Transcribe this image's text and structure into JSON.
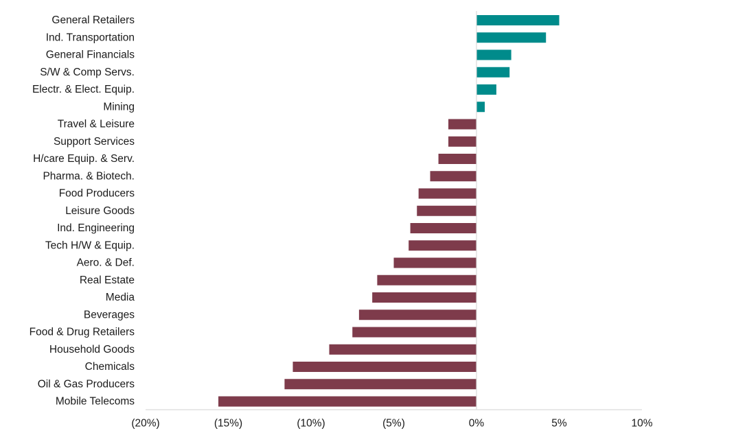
{
  "chart_data": {
    "type": "bar",
    "orientation": "horizontal",
    "title": "",
    "xlabel": "",
    "ylabel": "",
    "xlim": [
      -20,
      10
    ],
    "x_ticks": [
      -20,
      -15,
      -10,
      -5,
      0,
      5,
      10
    ],
    "x_tick_labels": [
      "(20%)",
      "(15%)",
      "(10%)",
      "(5%)",
      "0%",
      "5%",
      "10%"
    ],
    "grid": false,
    "legend": "none",
    "colors": {
      "positive": "#008b8b",
      "negative": "#7e3b4b",
      "axis": "#d9d9d9"
    },
    "categories": [
      "General Retailers",
      "Ind. Transportation",
      "General Financials",
      "S/W & Comp Servs.",
      "Electr. & Elect. Equip.",
      "Mining",
      "Travel & Leisure",
      "Support Services",
      "H/care Equip. & Serv.",
      "Pharma. & Biotech.",
      "Food Producers",
      "Leisure Goods",
      "Ind. Engineering",
      "Tech H/W & Equip.",
      "Aero. & Def.",
      "Real Estate",
      "Media",
      "Beverages",
      "Food & Drug Retailers",
      "Household Goods",
      "Chemicals",
      "Oil & Gas Producers",
      "Mobile Telecoms"
    ],
    "values": [
      5.0,
      4.2,
      2.1,
      2.0,
      1.2,
      0.5,
      -1.7,
      -1.7,
      -2.3,
      -2.8,
      -3.5,
      -3.6,
      -4.0,
      -4.1,
      -5.0,
      -6.0,
      -6.3,
      -7.1,
      -7.5,
      -8.9,
      -11.1,
      -11.6,
      -15.6
    ]
  }
}
